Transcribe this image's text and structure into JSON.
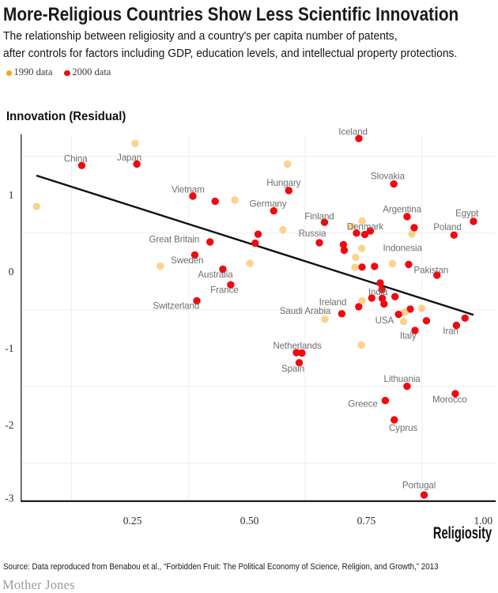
{
  "header": {
    "title": "More-Religious Countries Show Less Scientific Innovation",
    "subtitle_line1": "The relationship between religiosity and a country's per capita number of patents,",
    "subtitle_line2": "after controls for factors including GDP, education levels, and intellectual property protections."
  },
  "legend": {
    "items": [
      {
        "label": "1990 data",
        "color": "#F9A51A"
      },
      {
        "label": "2000 data",
        "color": "#F00A0F"
      }
    ]
  },
  "chart_data": {
    "type": "scatter",
    "xlabel": "Religiosity",
    "ylabel": "Innovation (Residual)",
    "xlim": [
      0.012,
      1.027
    ],
    "ylim": [
      -2.995,
      1.787
    ],
    "grid": true,
    "x_ticks": [
      {
        "value": 0.25,
        "label": "0.25"
      },
      {
        "value": 0.5,
        "label": "0.50"
      },
      {
        "value": 0.75,
        "label": "0.75"
      },
      {
        "value": 1.0,
        "label": "1.00"
      }
    ],
    "y_ticks": [
      {
        "value": 1,
        "label": "1"
      },
      {
        "value": 0,
        "label": "0"
      },
      {
        "value": -1,
        "label": "-1"
      },
      {
        "value": -2,
        "label": "-2"
      },
      {
        "value": -3,
        "label": "-3",
        "ly": -2.958
      }
    ],
    "x_gridlines": [
      0.1197,
      0.37,
      0.619,
      0.8685
    ],
    "y_gridlines": [
      1.5,
      0.5,
      -0.5,
      -1.5,
      -2.5
    ],
    "trend_line": {
      "x1": 0.0445,
      "y1": 1.2505,
      "x2": 0.9792,
      "y2": -0.566
    },
    "series": [
      {
        "name": "2000 data",
        "color": "#F00A0F",
        "points": [
          {
            "x": 0.1415,
            "y": 1.3814,
            "label": "China",
            "lx": 0.1285,
            "ly": 1.467
          },
          {
            "x": 0.2593,
            "y": 1.401,
            "label": "Japan",
            "lx": 0.2432,
            "ly": 1.4814
          },
          {
            "x": 0.3791,
            "y": 0.9825,
            "label": "Vietnam",
            "lx": 0.3687,
            "ly": 1.067
          },
          {
            "x": 0.4268,
            "y": 0.9144
          },
          {
            "x": 0.5842,
            "y": 1.0546,
            "label": "Hungary",
            "lx": 0.5732,
            "ly": 1.1546
          },
          {
            "x": 0.5521,
            "y": 0.7897,
            "label": "Germany",
            "lx": 0.5397,
            "ly": 0.8794
          },
          {
            "x": 0.7341,
            "y": 1.733,
            "label": "Iceland",
            "lx": 0.7216,
            "ly": 1.8175
          },
          {
            "x": 0.8088,
            "y": 1.1402,
            "label": "Slovakia",
            "lx": 0.7958,
            "ly": 1.2381
          },
          {
            "x": 0.6606,
            "y": 0.6402,
            "label": "Finland",
            "lx": 0.6496,
            "ly": 0.7144
          },
          {
            "x": 0.8372,
            "y": 0.7144,
            "label": "Argentina",
            "lx": 0.8264,
            "ly": 0.8072
          },
          {
            "x": 0.9792,
            "y": 0.6526,
            "label": "Egypt",
            "lx": 0.9652,
            "ly": 0.7557
          },
          {
            "x": 0.8524,
            "y": 0.5701
          },
          {
            "x": 0.9375,
            "y": 0.4742,
            "label": "Poland",
            "lx": 0.9234,
            "ly": 0.5742
          },
          {
            "x": 0.4158,
            "y": 0.3845,
            "label": "Great Britain",
            "lx": 0.3392,
            "ly": 0.4155
          },
          {
            "x": 0.5186,
            "y": 0.4856
          },
          {
            "x": 0.5123,
            "y": 0.368
          },
          {
            "x": 0.6496,
            "y": 0.3742,
            "label": "Russia",
            "lx": 0.6344,
            "ly": 0.4948
          },
          {
            "x": 0.701,
            "y": 0.3495
          },
          {
            "x": 0.7028,
            "y": 0.2763
          },
          {
            "x": 0.729,
            "y": 0.5
          },
          {
            "x": 0.7468,
            "y": 0.4814,
            "label": "Denmark",
            "lx": 0.7476,
            "ly": 0.5804
          },
          {
            "x": 0.7586,
            "y": 0.5289
          },
          {
            "x": 0.3832,
            "y": 0.2155,
            "label": "Sweden",
            "lx": 0.367,
            "ly": 0.1412
          },
          {
            "x": 0.4432,
            "y": 0.0289,
            "label": "Australia",
            "lx": 0.4273,
            "ly": -0.0454
          },
          {
            "x": 0.4601,
            "y": -0.1742,
            "label": "France",
            "lx": 0.4466,
            "ly": -0.2454
          },
          {
            "x": 0.3876,
            "y": -0.3835,
            "label": "Switzerland",
            "lx": 0.3433,
            "ly": -0.4505
          },
          {
            "x": 0.7409,
            "y": 0.0567
          },
          {
            "x": 0.7676,
            "y": 0.066
          },
          {
            "x": 0.8406,
            "y": 0.0918,
            "label": "Indonesia",
            "lx": 0.8274,
            "ly": 0.3041
          },
          {
            "x": 0.9011,
            "y": -0.0485,
            "label": "Pakistan",
            "lx": 0.8886,
            "ly": 0.0155
          },
          {
            "x": 0.7797,
            "y": -0.1515
          },
          {
            "x": 0.7835,
            "y": -0.2361,
            "label": "India",
            "lx": 0.775,
            "ly": -0.2722
          },
          {
            "x": 0.8114,
            "y": -0.3289
          },
          {
            "x": 0.7617,
            "y": -0.3464
          },
          {
            "x": 0.7841,
            "y": -0.3505
          },
          {
            "x": 0.7879,
            "y": -0.4237
          },
          {
            "x": 0.7338,
            "y": -0.4598,
            "label": "Ireland",
            "lx": 0.6783,
            "ly": -0.4021
          },
          {
            "x": 0.6976,
            "y": -0.5515,
            "label": "Saudi Arabia",
            "lx": 0.6192,
            "ly": -0.5165
          },
          {
            "x": 0.819,
            "y": -0.5598,
            "label": "USA",
            "lx": 0.7889,
            "ly": -0.6392
          },
          {
            "x": 0.844,
            "y": -0.4907
          },
          {
            "x": 0.8786,
            "y": -0.6433
          },
          {
            "x": 0.9611,
            "y": -0.6082
          },
          {
            "x": 0.9427,
            "y": -0.7031,
            "label": "Iran",
            "lx": 0.9304,
            "ly": -0.7784
          },
          {
            "x": 0.8541,
            "y": -0.7701,
            "label": "Italy",
            "lx": 0.8394,
            "ly": -0.8423
          },
          {
            "x": 0.6006,
            "y": -1.0588,
            "label": "Netherlands",
            "lx": 0.6024,
            "ly": -0.9701
          },
          {
            "x": 0.6124,
            "y": -1.0639
          },
          {
            "x": 0.6065,
            "y": -1.1907,
            "label": "Spain",
            "lx": 0.593,
            "ly": -1.2711
          },
          {
            "x": 0.8371,
            "y": -1.4979,
            "label": "Lithuania",
            "lx": 0.8264,
            "ly": -1.4041
          },
          {
            "x": 0.7906,
            "y": -1.6835,
            "label": "Greece",
            "lx": 0.7426,
            "ly": -1.7309
          },
          {
            "x": 0.9402,
            "y": -1.5938,
            "label": "Morocco",
            "lx": 0.9283,
            "ly": -1.6742
          },
          {
            "x": 0.8098,
            "y": -1.9351,
            "label": "Cyprus",
            "lx": 0.8289,
            "ly": -2.0433
          },
          {
            "x": 0.8737,
            "y": -2.9144,
            "label": "Portugal",
            "lx": 0.8627,
            "ly": -2.7907
          }
        ]
      },
      {
        "name": "1990 data",
        "color": "rgba(249,165,26,0.5)",
        "points": [
          {
            "x": 0.045,
            "y": 0.8464
          },
          {
            "x": 0.2556,
            "y": 1.668
          },
          {
            "x": 0.3095,
            "y": 0.067
          },
          {
            "x": 0.4687,
            "y": 0.9309
          },
          {
            "x": 0.5718,
            "y": 0.5454
          },
          {
            "x": 0.5815,
            "y": 1.3979
          },
          {
            "x": 0.5012,
            "y": 0.1062
          },
          {
            "x": 0.6614,
            "y": -0.6237
          },
          {
            "x": 0.7273,
            "y": 0.1845
          },
          {
            "x": 0.7257,
            "y": 0.0536
          },
          {
            "x": 0.7404,
            "y": 0.3
          },
          {
            "x": 0.7412,
            "y": 0.6567
          },
          {
            "x": 0.8059,
            "y": 0.1021
          },
          {
            "x": 0.8474,
            "y": 0.4856
          },
          {
            "x": 0.741,
            "y": -0.3814
          },
          {
            "x": 0.8328,
            "y": -0.5309
          },
          {
            "x": 0.8296,
            "y": -0.6546
          },
          {
            "x": 0.8685,
            "y": -0.4814
          },
          {
            "x": 0.7397,
            "y": -0.9598
          },
          {
            "x": 0.7197,
            "y": 0.5845
          }
        ]
      }
    ]
  },
  "footer": {
    "source": "Source: Data reproduced from Benabou et al., “Forbidden Fruit: The Political Economy of Science, Religion, and Growth,” 2013",
    "brand": "Mother Jones"
  }
}
